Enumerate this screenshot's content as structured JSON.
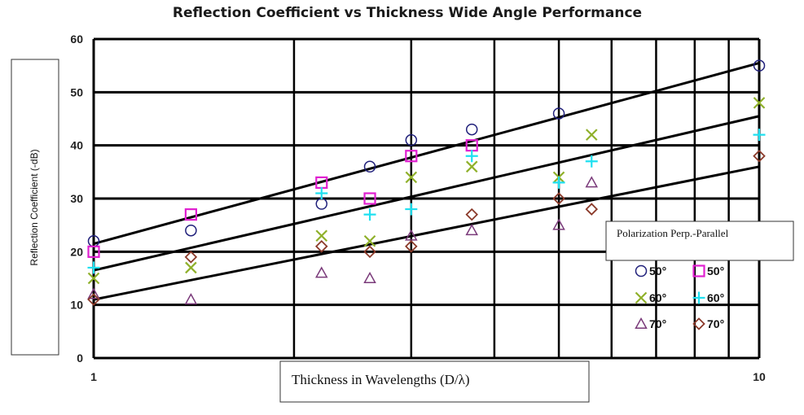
{
  "chart_data": {
    "type": "scatter",
    "title": "Reflection Coefficient vs Thickness Wide Angle Performance",
    "xlabel": "Thickness in Wavelengths (D/λ)",
    "ylabel": "Reflection Coefficient (-dB)",
    "x_scale": "log",
    "xlim": [
      1,
      10
    ],
    "ylim": [
      0,
      60
    ],
    "x_tick_labels": [
      "1",
      "10"
    ],
    "y_ticks": [
      0,
      10,
      20,
      30,
      40,
      50,
      60
    ],
    "y_tick_labels": [
      "0",
      "10",
      "20",
      "30",
      "40",
      "50",
      "60"
    ],
    "grid": true,
    "legend_title": "Polarization Perp.-Parallel",
    "legend_position": "right",
    "series": [
      {
        "name": "50°",
        "marker": "circle",
        "color": "#1f1f7a",
        "x": [
          1,
          1.4,
          2.2,
          2.6,
          3.0,
          3.7,
          5.0,
          10
        ],
        "y": [
          22,
          24,
          29,
          36,
          41,
          43,
          46,
          55
        ]
      },
      {
        "name": "50°",
        "marker": "square",
        "color": "#e020d0",
        "x": [
          1,
          1.4,
          2.2,
          2.6,
          3.0,
          3.7
        ],
        "y": [
          20,
          27,
          33,
          30,
          38,
          40
        ]
      },
      {
        "name": "60°",
        "marker": "x",
        "color": "#8fb02a",
        "x": [
          1,
          1.4,
          2.2,
          2.6,
          3.0,
          3.7,
          5.0,
          5.6,
          10
        ],
        "y": [
          15,
          17,
          23,
          22,
          34,
          36,
          34,
          42,
          48
        ]
      },
      {
        "name": "60°",
        "marker": "plus",
        "color": "#1fe0f0",
        "x": [
          1,
          2.2,
          2.6,
          3.0,
          3.7,
          5.0,
          5.6,
          10
        ],
        "y": [
          17,
          31,
          27,
          28,
          38,
          33,
          37,
          42
        ]
      },
      {
        "name": "70°",
        "marker": "triangle",
        "color": "#7a3a7a",
        "x": [
          1,
          1.4,
          2.2,
          2.6,
          3.0,
          3.7,
          5.0,
          5.6
        ],
        "y": [
          12,
          11,
          16,
          15,
          23,
          24,
          25,
          33
        ]
      },
      {
        "name": "70°",
        "marker": "diamond",
        "color": "#8b3a2a",
        "x": [
          1,
          1.4,
          2.2,
          2.6,
          3.0,
          3.7,
          5.0,
          5.6,
          10
        ],
        "y": [
          11,
          19,
          21,
          20,
          21,
          27,
          30,
          28,
          38
        ]
      }
    ],
    "trend_lines": [
      {
        "x": [
          1,
          10
        ],
        "y": [
          21.5,
          55.5
        ]
      },
      {
        "x": [
          1,
          10
        ],
        "y": [
          16.5,
          45.5
        ]
      },
      {
        "x": [
          1,
          10
        ],
        "y": [
          11,
          36
        ]
      }
    ]
  }
}
